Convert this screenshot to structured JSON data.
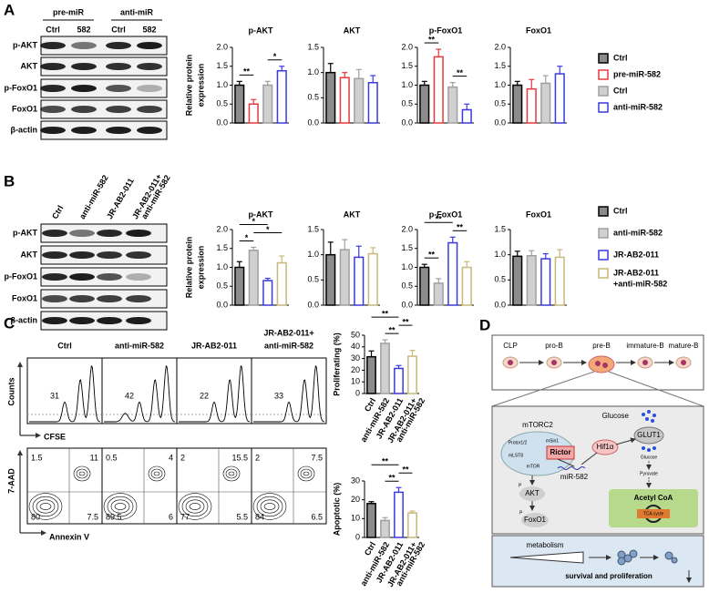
{
  "panel_labels": [
    "A",
    "B",
    "C",
    "D"
  ],
  "blot_A": {
    "groups": [
      "pre-miR",
      "anti-miR"
    ],
    "lanes": [
      "Ctrl",
      "582",
      "Ctrl",
      "582"
    ],
    "rows": [
      "p-AKT",
      "AKT",
      "p-FoxO1",
      "FoxO1",
      "β-actin"
    ]
  },
  "blot_B": {
    "lanes": [
      "Ctrl",
      "anti-miR-582",
      "JR-AB2-011",
      [
        "JR-AB2-011+",
        "anti-miR-582"
      ]
    ],
    "rows": [
      "p-AKT",
      "AKT",
      "p-FoxO1",
      "FoxO1",
      "β-actin"
    ]
  },
  "legend_A": [
    {
      "name": "Ctrl",
      "fill": "#8c8c8c",
      "stroke": "#000000"
    },
    {
      "name": "pre-miR-582",
      "fill": "#ffffff",
      "stroke": "#e8383d"
    },
    {
      "name": "Ctrl",
      "fill": "#d0d0d0",
      "stroke": "#a0a0a0"
    },
    {
      "name": "anti-miR-582",
      "fill": "#ffffff",
      "stroke": "#3a3adf"
    }
  ],
  "legend_B": [
    {
      "name": "Ctrl",
      "fill": "#8c8c8c",
      "stroke": "#000000"
    },
    {
      "name": "anti-miR-582",
      "fill": "#d0d0d0",
      "stroke": "#a0a0a0"
    },
    {
      "name": "JR-AB2-011",
      "fill": "#ffffff",
      "stroke": "#3a3adf"
    },
    {
      "name": [
        "JR-AB2-011",
        "+anti-miR-582"
      ],
      "fill": "#ffffff",
      "stroke": "#c8b87a"
    }
  ],
  "chart_data": [
    {
      "type": "bar",
      "title": "p-AKT",
      "ylabel": [
        "Relative protein",
        "expression"
      ],
      "values": [
        1.0,
        0.5,
        1.0,
        1.38
      ],
      "errors": [
        0.1,
        0.12,
        0.1,
        0.12
      ],
      "colors": [
        "#8c8c8c",
        "#ffffff",
        "#d0d0d0",
        "#ffffff"
      ],
      "edges": [
        "#000000",
        "#e8383d",
        "#a0a0a0",
        "#3a3adf"
      ],
      "ylim": [
        0,
        2.0
      ],
      "yticks": [
        {
          "value": 0,
          "label": "0.0"
        },
        0.5,
        {
          "value": 1,
          "label": "1.0"
        },
        1.5,
        {
          "value": 2,
          "label": "2.0"
        }
      ],
      "annotations": [
        {
          "text": "**",
          "bars": [
            0,
            1
          ]
        },
        {
          "text": "*",
          "bars": [
            2,
            3
          ]
        }
      ]
    },
    {
      "type": "bar",
      "title": "AKT",
      "values": [
        1.0,
        0.9,
        0.88,
        0.8
      ],
      "errors": [
        0.18,
        0.1,
        0.18,
        0.14
      ],
      "colors": [
        "#8c8c8c",
        "#ffffff",
        "#d0d0d0",
        "#ffffff"
      ],
      "edges": [
        "#000000",
        "#e8383d",
        "#a0a0a0",
        "#3a3adf"
      ],
      "ylim": [
        0,
        1.5
      ],
      "yticks": [
        {
          "value": 0,
          "label": "0.0"
        },
        0.5,
        {
          "value": 1,
          "label": "1.0"
        },
        1.5
      ],
      "annotations": []
    },
    {
      "type": "bar",
      "title": "p-FoxO1",
      "values": [
        1.0,
        1.75,
        0.95,
        0.35
      ],
      "errors": [
        0.1,
        0.2,
        0.12,
        0.15
      ],
      "colors": [
        "#8c8c8c",
        "#ffffff",
        "#d0d0d0",
        "#ffffff"
      ],
      "edges": [
        "#000000",
        "#e8383d",
        "#a0a0a0",
        "#3a3adf"
      ],
      "ylim": [
        0,
        2.0
      ],
      "yticks": [
        {
          "value": 0,
          "label": "0.0"
        },
        0.5,
        {
          "value": 1,
          "label": "1.0"
        },
        1.5,
        {
          "value": 2,
          "label": "2.0"
        }
      ],
      "annotations": [
        {
          "text": "**",
          "bars": [
            0,
            1
          ]
        },
        {
          "text": "**",
          "bars": [
            2,
            3
          ]
        }
      ]
    },
    {
      "type": "bar",
      "title": "FoxO1",
      "values": [
        1.0,
        0.9,
        1.05,
        1.3
      ],
      "errors": [
        0.1,
        0.25,
        0.2,
        0.2
      ],
      "colors": [
        "#8c8c8c",
        "#ffffff",
        "#d0d0d0",
        "#ffffff"
      ],
      "edges": [
        "#000000",
        "#e8383d",
        "#a0a0a0",
        "#3a3adf"
      ],
      "ylim": [
        0,
        2.0
      ],
      "yticks": [
        {
          "value": 0,
          "label": "0.0"
        },
        0.5,
        {
          "value": 1,
          "label": "1.0"
        },
        1.5,
        {
          "value": 2,
          "label": "2.0"
        }
      ],
      "annotations": []
    },
    {
      "type": "bar",
      "title": "p-AKT",
      "ylabel": [
        "Relative protein",
        "expression"
      ],
      "values": [
        1.0,
        1.45,
        0.65,
        1.12
      ],
      "errors": [
        0.15,
        0.08,
        0.06,
        0.18
      ],
      "colors": [
        "#8c8c8c",
        "#d0d0d0",
        "#ffffff",
        "#ffffff"
      ],
      "edges": [
        "#000000",
        "#a0a0a0",
        "#3a3adf",
        "#c8b87a"
      ],
      "ylim": [
        0,
        2.0
      ],
      "yticks": [
        {
          "value": 0,
          "label": "0.0"
        },
        0.5,
        {
          "value": 1,
          "label": "1.0"
        },
        1.5,
        {
          "value": 2,
          "label": "2.0"
        }
      ],
      "annotations": [
        {
          "text": "*",
          "bars": [
            0,
            1
          ]
        },
        {
          "text": "*",
          "bars": [
            1,
            3
          ]
        },
        {
          "text": "*",
          "bars": [
            0,
            2
          ]
        }
      ]
    },
    {
      "type": "bar",
      "title": "AKT",
      "values": [
        1.0,
        1.1,
        0.95,
        1.02
      ],
      "errors": [
        0.25,
        0.2,
        0.22,
        0.12
      ],
      "colors": [
        "#8c8c8c",
        "#d0d0d0",
        "#ffffff",
        "#ffffff"
      ],
      "edges": [
        "#000000",
        "#a0a0a0",
        "#3a3adf",
        "#c8b87a"
      ],
      "ylim": [
        0,
        1.5
      ],
      "yticks": [
        {
          "value": 0,
          "label": "0.0"
        },
        0.5,
        {
          "value": 1,
          "label": "1.0"
        },
        1.5
      ],
      "annotations": []
    },
    {
      "type": "bar",
      "title": "p-FoxO1",
      "values": [
        1.0,
        0.58,
        1.65,
        1.0
      ],
      "errors": [
        0.08,
        0.12,
        0.15,
        0.15
      ],
      "colors": [
        "#8c8c8c",
        "#d0d0d0",
        "#ffffff",
        "#ffffff"
      ],
      "edges": [
        "#000000",
        "#a0a0a0",
        "#3a3adf",
        "#c8b87a"
      ],
      "ylim": [
        0,
        2.0
      ],
      "yticks": [
        {
          "value": 0,
          "label": "0.0"
        },
        0.5,
        {
          "value": 1,
          "label": "1.0"
        },
        1.5,
        {
          "value": 2,
          "label": "2.0"
        }
      ],
      "annotations": [
        {
          "text": "**",
          "bars": [
            0,
            1
          ]
        },
        {
          "text": "**",
          "bars": [
            2,
            3
          ]
        },
        {
          "text": "**",
          "bars": [
            0,
            2
          ]
        }
      ]
    },
    {
      "type": "bar",
      "title": "FoxO1",
      "values": [
        0.97,
        0.98,
        0.92,
        0.95
      ],
      "errors": [
        0.1,
        0.1,
        0.1,
        0.15
      ],
      "colors": [
        "#8c8c8c",
        "#d0d0d0",
        "#ffffff",
        "#ffffff"
      ],
      "edges": [
        "#000000",
        "#a0a0a0",
        "#3a3adf",
        "#c8b87a"
      ],
      "ylim": [
        0,
        1.5
      ],
      "yticks": [
        {
          "value": 0,
          "label": "0.0"
        },
        0.5,
        {
          "value": 1,
          "label": "1.0"
        },
        1.5
      ],
      "annotations": []
    },
    {
      "type": "bar",
      "ylabel": "Proliferating (%)",
      "categories": [
        "Ctrl",
        "anti-miR-582",
        "JR-AB2-011",
        [
          "JR-AB2-011+",
          "anti-miR-582"
        ]
      ],
      "values": [
        31.5,
        43,
        21.5,
        32
      ],
      "errors": [
        5,
        3,
        2.5,
        5
      ],
      "colors": [
        "#8c8c8c",
        "#d0d0d0",
        "#ffffff",
        "#ffffff"
      ],
      "edges": [
        "#000000",
        "#a0a0a0",
        "#3a3adf",
        "#c8b87a"
      ],
      "ylim": [
        0,
        50
      ],
      "yticks": [
        0,
        10,
        20,
        30,
        40,
        50
      ],
      "annotations": [
        {
          "text": "**",
          "bars": [
            1,
            2
          ]
        },
        {
          "text": "**",
          "bars": [
            2,
            3
          ]
        },
        {
          "text": "**",
          "bars": [
            0,
            2
          ]
        }
      ]
    },
    {
      "type": "bar",
      "ylabel": "Apoptotic (%)",
      "categories": [
        "Ctrl",
        "anti-miR-582",
        "JR-AB2-011",
        [
          "JR-AB2-011+",
          "anti-miR-582"
        ]
      ],
      "values": [
        18,
        9,
        24,
        13
      ],
      "errors": [
        1,
        1.5,
        2.5,
        1
      ],
      "colors": [
        "#8c8c8c",
        "#d0d0d0",
        "#ffffff",
        "#ffffff"
      ],
      "edges": [
        "#000000",
        "#a0a0a0",
        "#3a3adf",
        "#c8b87a"
      ],
      "ylim": [
        0,
        30
      ],
      "yticks": [
        0,
        10,
        20,
        30
      ],
      "annotations": [
        {
          "text": "**",
          "bars": [
            1,
            2
          ]
        },
        {
          "text": "**",
          "bars": [
            2,
            3
          ]
        },
        {
          "text": "**",
          "bars": [
            0,
            2
          ]
        }
      ]
    }
  ],
  "flow": {
    "columns": [
      "Ctrl",
      "anti-miR-582",
      "JR-AB2-011",
      [
        "JR-AB2-011+",
        "anti-miR-582"
      ]
    ],
    "proliferating": [
      31,
      42,
      22,
      33
    ],
    "quadrants": [
      [
        1.5,
        11,
        80,
        7.5
      ],
      [
        0.5,
        4,
        89.5,
        6
      ],
      [
        2,
        15.5,
        77,
        5.5
      ],
      [
        2,
        7.5,
        84,
        6.5
      ]
    ],
    "hist_ylabel": "Counts",
    "hist_xlabel": "CFSE",
    "contour_ylabel": "7-AAD",
    "contour_xlabel": "Annexin V"
  },
  "diagram": {
    "stages": [
      "CLP",
      "pro-B",
      "pre-B",
      "immature-B",
      "mature-B"
    ],
    "glucose_out": "Glucose",
    "glut1": "GLUT1",
    "glucose_in": "Glucose",
    "pyruvate": "Pyruvate",
    "mtorc2": "mTORC2",
    "subunits": [
      "Protor1/2",
      "mSin1",
      "mLST8",
      "mTOR"
    ],
    "rictor": "Rictor",
    "hif1a": "Hif1α",
    "mirna": "miR-582",
    "akt": "AKT",
    "foxo1": "FoxO1",
    "phospho": [
      "P",
      "P"
    ],
    "acetyl": "Acetyl CoA",
    "tca": "TCA cycle",
    "metabolism": "metabolism",
    "outcome": "survival and proliferation"
  }
}
